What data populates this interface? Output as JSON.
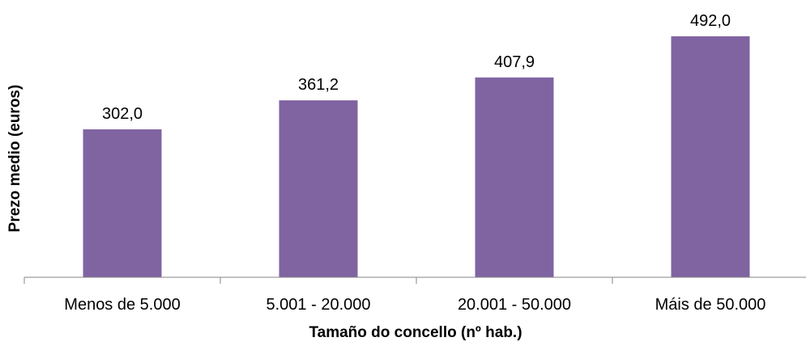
{
  "chart_data": {
    "type": "bar",
    "categories": [
      "Menos de 5.000",
      "5.001 - 20.000",
      "20.001 - 50.000",
      "Máis de 50.000"
    ],
    "values": [
      302.0,
      361.2,
      407.9,
      492.0
    ],
    "value_labels": [
      "302,0",
      "361,2",
      "407,9",
      "492,0"
    ],
    "xlabel": "Tamaño do concello (nº hab.)",
    "ylabel": "Prezo medio (euros)",
    "ylim": [
      0,
      500
    ],
    "grid": false,
    "legend": "none",
    "bar_color": "#8064a2",
    "axis_color": "#868686"
  }
}
